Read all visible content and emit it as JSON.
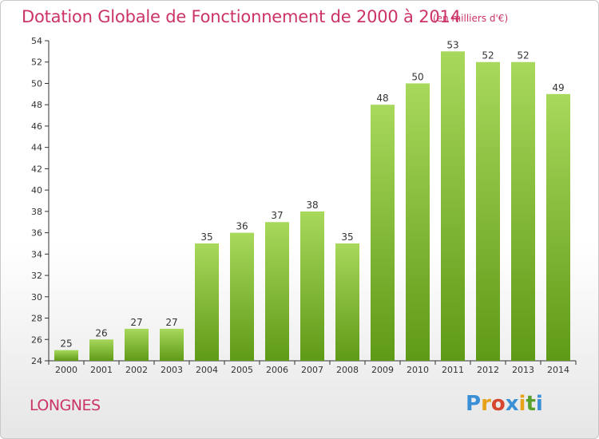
{
  "title": "Dotation Globale de Fonctionnement de 2000 à 2014",
  "subtitle": "(en milliers d'€)",
  "commune": "LONGNES",
  "logo": {
    "text": "Proxiti",
    "colors": [
      "#3a8fd6",
      "#e8a21a",
      "#d6462f",
      "#3a8fd6",
      "#e8a21a",
      "#5aa02c",
      "#3a8fd6"
    ]
  },
  "colors": {
    "title": "#cc3366",
    "bar_light": "#a6d65a",
    "bar_dark": "#5f9a16"
  },
  "chart_data": {
    "type": "bar",
    "categories": [
      "2000",
      "2001",
      "2002",
      "2003",
      "2004",
      "2005",
      "2006",
      "2007",
      "2008",
      "2009",
      "2010",
      "2011",
      "2012",
      "2013",
      "2014"
    ],
    "values": [
      25,
      26,
      27,
      27,
      35,
      36,
      37,
      38,
      35,
      48,
      50,
      53,
      52,
      52,
      49
    ],
    "title": "Dotation Globale de Fonctionnement de 2000 à 2014",
    "subtitle": "(en milliers d'€)",
    "xlabel": "",
    "ylabel": "",
    "ylim": [
      24,
      54
    ],
    "yticks": [
      24,
      26,
      28,
      30,
      32,
      34,
      36,
      38,
      40,
      42,
      44,
      46,
      48,
      50,
      52,
      54
    ],
    "grid": false,
    "data_labels": true
  }
}
